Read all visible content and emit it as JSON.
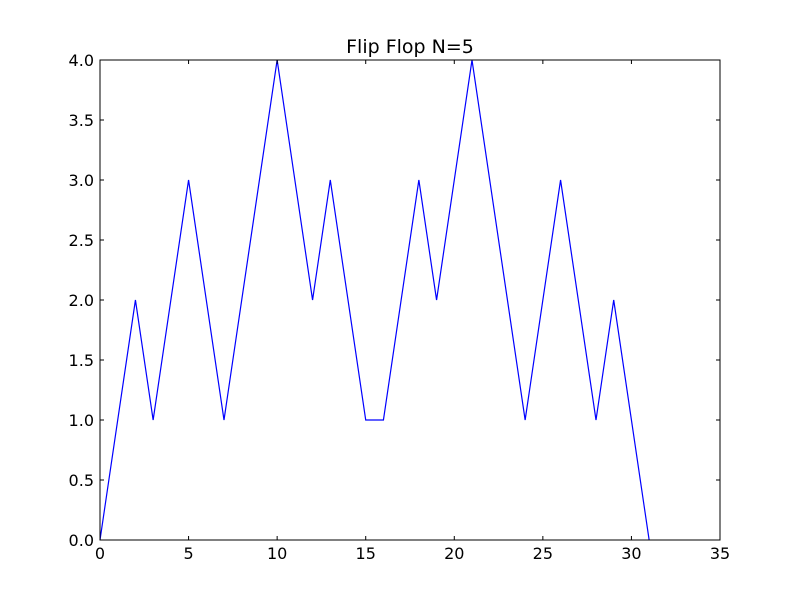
{
  "chart_data": {
    "type": "line",
    "title": "Flip Flop N=5",
    "xlabel": "",
    "ylabel": "",
    "xlim": [
      0,
      35
    ],
    "ylim": [
      0,
      4
    ],
    "xticks": [
      0,
      5,
      10,
      15,
      20,
      25,
      30,
      35
    ],
    "yticks": [
      0,
      0.5,
      1,
      1.5,
      2,
      2.5,
      3,
      3.5,
      4
    ],
    "xtick_labels": [
      "0",
      "5",
      "10",
      "15",
      "20",
      "25",
      "30",
      "35"
    ],
    "ytick_labels": [
      "0.0",
      "0.5",
      "1.0",
      "1.5",
      "2.0",
      "2.5",
      "3.0",
      "3.5",
      "4.0"
    ],
    "grid": false,
    "series": [
      {
        "color": "#0000ff",
        "x": [
          0,
          2,
          3,
          5,
          7,
          10,
          12,
          13,
          15,
          16,
          18,
          19,
          21,
          24,
          26,
          28,
          29,
          31
        ],
        "y": [
          0,
          2,
          1,
          3,
          1,
          4,
          2,
          3,
          1,
          1,
          3,
          2,
          4,
          1,
          3,
          1,
          2,
          0
        ]
      }
    ]
  }
}
